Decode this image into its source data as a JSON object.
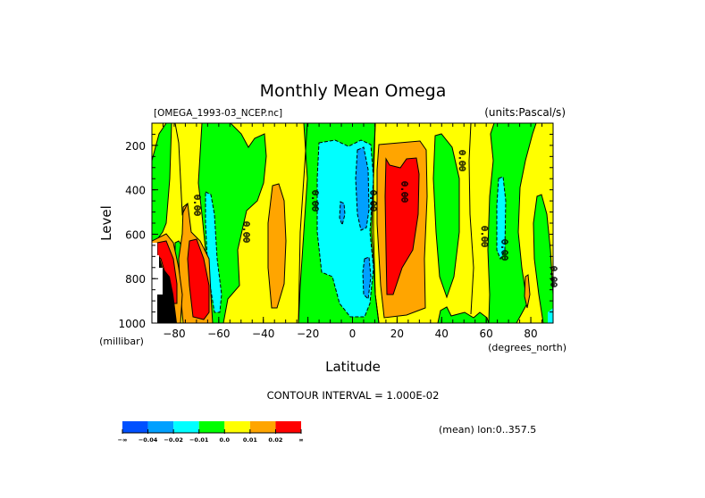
{
  "chart_data": {
    "type": "heatmap",
    "subtype": "filled-contour",
    "title": "Monthly Mean Omega",
    "file_label": "[OMEGA_1993-03_NCEP.nc]",
    "units_label": "(units:Pascal/s)",
    "xlabel": "Latitude",
    "x_units": "(degrees_north)",
    "ylabel": "Level",
    "y_units": "(millibar)",
    "xlim": [
      -90,
      90
    ],
    "ylim": [
      1000,
      100
    ],
    "x_ticks": [
      -80,
      -60,
      -40,
      -20,
      0,
      20,
      40,
      60,
      80
    ],
    "y_ticks": [
      200,
      400,
      600,
      800,
      1000
    ],
    "contour_interval_text": "CONTOUR INTERVAL = 1.000E-02",
    "footer_text": "(mean) lon:0..357.5",
    "contour_labels": [
      "0.00",
      "0.00",
      "0.00",
      "0.00",
      "0.00",
      "0.00",
      "0.00",
      "0.00",
      "0.00"
    ],
    "colorbar": {
      "levels": [
        "-∞",
        "-0.04",
        "-0.02",
        "-0.01",
        "0.0",
        "0.01",
        "0.02",
        "∞"
      ],
      "colors": [
        "#0050ff",
        "#00a0ff",
        "#00ffff",
        "#00ff00",
        "#ffff00",
        "#ffa500",
        "#ff0000"
      ]
    },
    "regions": [
      {
        "name": "yellow-west-band",
        "color": "#ffff00",
        "lat": [
          -88,
          -62
        ],
        "lev": [
          100,
          1000
        ]
      },
      {
        "name": "green-sh-polar",
        "color": "#00ff00",
        "lat": [
          -90,
          -78
        ],
        "lev": [
          100,
          580
        ]
      },
      {
        "name": "green-sh-upper",
        "color": "#00ff00",
        "lat": [
          -62,
          -22
        ],
        "lev": [
          100,
          420
        ]
      },
      {
        "name": "cyan-sh-60",
        "color": "#00ffff",
        "lat": [
          -69,
          -61
        ],
        "lev": [
          450,
          980
        ]
      },
      {
        "name": "orange-sh-75",
        "color": "#ffa500",
        "lat": [
          -78,
          -70
        ],
        "lev": [
          430,
          1000
        ]
      },
      {
        "name": "red-sh-72",
        "color": "#ff0000",
        "lat": [
          -76,
          -67
        ],
        "lev": [
          680,
          1000
        ]
      },
      {
        "name": "red-sh-85",
        "color": "#ff0000",
        "lat": [
          -90,
          -82
        ],
        "lev": [
          620,
          760
        ]
      },
      {
        "name": "orange-sh-35",
        "color": "#ffa500",
        "lat": [
          -41,
          -30
        ],
        "lev": [
          420,
          910
        ]
      },
      {
        "name": "green-tropics",
        "color": "#00ff00",
        "lat": [
          -20,
          14
        ],
        "lev": [
          100,
          1000
        ]
      },
      {
        "name": "cyan-tropics",
        "color": "#00ffff",
        "lat": [
          -16,
          12
        ],
        "lev": [
          180,
          960
        ]
      },
      {
        "name": "blue-tropics-a",
        "color": "#00a0ff",
        "lat": [
          3,
          10
        ],
        "lev": [
          220,
          620
        ]
      },
      {
        "name": "blue-tropics-b",
        "color": "#00a0ff",
        "lat": [
          -5,
          -2
        ],
        "lev": [
          460,
          620
        ]
      },
      {
        "name": "blue-tropics-c",
        "color": "#00a0ff",
        "lat": [
          5,
          9
        ],
        "lev": [
          760,
          920
        ]
      },
      {
        "name": "orange-nh-20",
        "color": "#ffa500",
        "lat": [
          12,
          34
        ],
        "lev": [
          180,
          1000
        ]
      },
      {
        "name": "red-nh-20",
        "color": "#ff0000",
        "lat": [
          14,
          30
        ],
        "lev": [
          250,
          850
        ]
      },
      {
        "name": "green-nh-45",
        "color": "#00ff00",
        "lat": [
          36,
          46
        ],
        "lev": [
          190,
          880
        ]
      },
      {
        "name": "green-nh-60",
        "color": "#00ff00",
        "lat": [
          52,
          72
        ],
        "lev": [
          100,
          1000
        ]
      },
      {
        "name": "cyan-nh-65",
        "color": "#00ffff",
        "lat": [
          61,
          65
        ],
        "lev": [
          460,
          720
        ]
      },
      {
        "name": "green-nh-85",
        "color": "#00ff00",
        "lat": [
          80,
          90
        ],
        "lev": [
          420,
          1000
        ]
      },
      {
        "name": "orange-nh-82",
        "color": "#ffa500",
        "lat": [
          76,
          78
        ],
        "lev": [
          750,
          930
        ]
      },
      {
        "name": "missing-sh",
        "color": "#ffffff",
        "lat": [
          -90,
          -84
        ],
        "lev": [
          650,
          1000
        ]
      }
    ]
  }
}
